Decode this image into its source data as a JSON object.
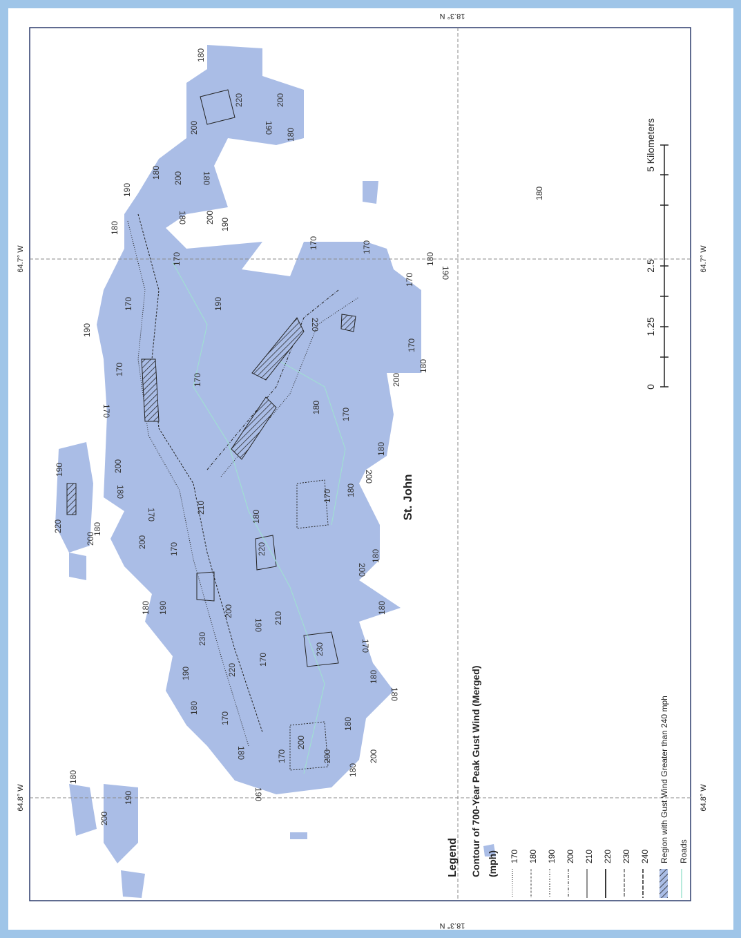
{
  "coordinates": {
    "top": "18.3° N",
    "bottom": "18.3° N",
    "left_east": "64.7° W",
    "left_west": "64.8° W",
    "right_east": "64.7° W",
    "right_west": "64.8° W"
  },
  "place_label": "St. John",
  "scale_bar": {
    "ticks": [
      "0",
      "1.25",
      "2.5"
    ],
    "unit_label": "5 Kilometers"
  },
  "legend": {
    "heading": "Legend",
    "title": "Contour of 700-Year Peak Gust Wind (Merged)",
    "units": "(mph)",
    "levels": [
      "170",
      "180",
      "190",
      "200",
      "210",
      "220",
      "230",
      "240"
    ],
    "region": "Region with Gust Wind Greater than 240 mph",
    "roads": "Roads"
  },
  "contour_labels": [
    "180",
    "200",
    "220",
    "190",
    "180",
    "200",
    "180",
    "200",
    "180",
    "190",
    "200",
    "190",
    "180",
    "180",
    "170",
    "170",
    "170",
    "180",
    "190",
    "170",
    "190",
    "170",
    "190",
    "220",
    "170",
    "180",
    "170",
    "170",
    "170",
    "200",
    "180",
    "170",
    "180",
    "200",
    "180",
    "170",
    "190",
    "200",
    "180",
    "220",
    "200",
    "180",
    "200",
    "170",
    "210",
    "180",
    "220",
    "180",
    "200",
    "170",
    "180",
    "190",
    "200",
    "190",
    "210",
    "180",
    "230",
    "230",
    "170",
    "190",
    "220",
    "170",
    "180",
    "180",
    "180",
    "170",
    "200",
    "180",
    "180",
    "200",
    "200",
    "170",
    "180",
    "190",
    "180",
    "200",
    "190",
    "180"
  ]
}
